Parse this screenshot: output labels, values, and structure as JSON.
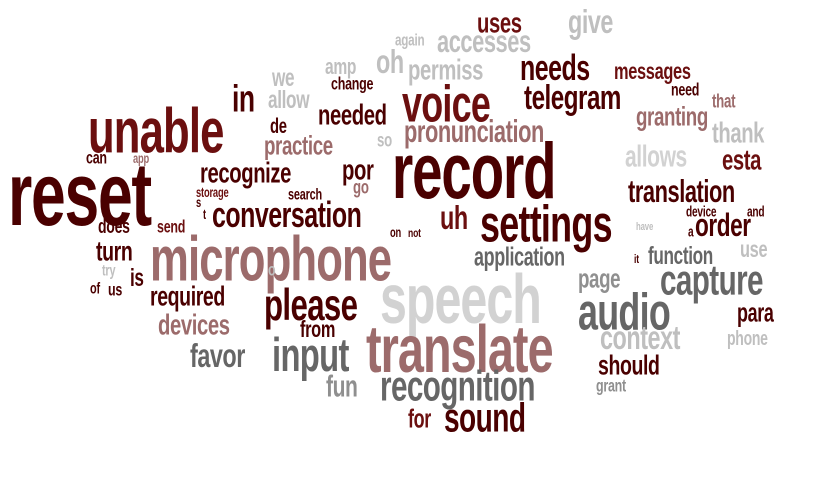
{
  "palette": {
    "maroon_dark": "#4a0000",
    "maroon": "#6b0f0f",
    "red_brown": "#8c2a2a",
    "mauve": "#9c6b6b",
    "gray_dark": "#666666",
    "gray": "#8f8f8f",
    "gray_light": "#bfbfbf",
    "gray_pale": "#d2d2d2"
  },
  "words": [
    "uses",
    "give",
    "again",
    "accesses",
    "amp",
    "oh",
    "permiss",
    "needs",
    "messages",
    "we",
    "change",
    "allow",
    "voice",
    "telegram",
    "need",
    "that",
    "in",
    "needed",
    "granting",
    "unable",
    "de",
    "so",
    "pronunciation",
    "thank",
    "can",
    "app",
    "practice",
    "por",
    "record",
    "allows",
    "esta",
    "reset",
    "recognize",
    "storage",
    "search",
    "go",
    "translation",
    "s",
    "t",
    "conversation",
    "does",
    "send",
    "device",
    "and",
    "settings",
    "uh",
    "order",
    "on",
    "not",
    "turn",
    "have",
    "a",
    "it",
    "function",
    "use",
    "microphone",
    "application",
    "try",
    "is",
    "o",
    "of",
    "us",
    "page",
    "capture",
    "required",
    "speech",
    "please",
    "para",
    "audio",
    "devices",
    "from",
    "context",
    "phone",
    "favor",
    "input",
    "translate",
    "should",
    "fun",
    "recognition",
    "grant",
    "for",
    "sound"
  ]
}
